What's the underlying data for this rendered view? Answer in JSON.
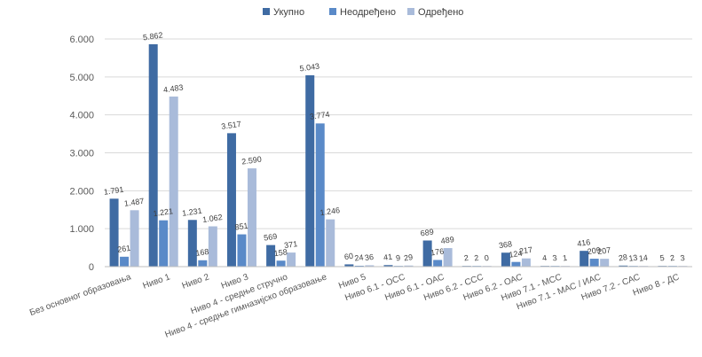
{
  "chart_data": {
    "type": "bar",
    "title": "",
    "xlabel": "",
    "ylabel": "",
    "ylim": [
      0,
      6000
    ],
    "yticks": [
      0,
      1000,
      2000,
      3000,
      4000,
      5000,
      6000
    ],
    "ytick_labels": [
      "0",
      "1.000",
      "2.000",
      "3.000",
      "4.000",
      "5.000",
      "6.000"
    ],
    "grid": true,
    "legend_position": "top-center",
    "categories": [
      "Без основног образовања",
      "Ниво 1",
      "Ниво 2",
      "Ниво 3",
      "Ниво 4 - средње стручно",
      "Ниво 4 - средње гимназијско образовање",
      "Ниво 5",
      "Ниво 6.1 - ОСС",
      "Ниво 6.1 - ОАС",
      "Ниво 6.2 - ССС",
      "Ниво 6.2 - ОАС",
      "Ниво 7.1 - МСС",
      "Ниво 7.1 - МАС / ИАС",
      "Ниво 7.2 - САС",
      "Ниво 8 - ДС"
    ],
    "series": [
      {
        "name": "Укупно",
        "color": "#3f6ba3",
        "values": [
          1791,
          5862,
          1231,
          3517,
          569,
          5043,
          60,
          41,
          689,
          2,
          368,
          4,
          416,
          28,
          5
        ],
        "labels": [
          "1.791",
          "5.862",
          "1.231",
          "3.517",
          "569",
          "5.043",
          "60",
          "41",
          "689",
          "2",
          "368",
          "4",
          "416",
          "28",
          "5"
        ]
      },
      {
        "name": "Неодређено",
        "color": "#5a8ac8",
        "values": [
          261,
          1221,
          168,
          851,
          158,
          3774,
          24,
          9,
          176,
          2,
          124,
          3,
          209,
          13,
          2
        ],
        "labels": [
          "261",
          "1.221",
          "168",
          "851",
          "158",
          "3.774",
          "24",
          "9",
          "176",
          "2",
          "124",
          "3",
          "209",
          "13",
          "2"
        ]
      },
      {
        "name": "Одређено",
        "color": "#a9bbda",
        "values": [
          1487,
          4483,
          1062,
          2590,
          371,
          1246,
          36,
          29,
          489,
          0,
          217,
          1,
          207,
          14,
          3
        ],
        "labels": [
          "1.487",
          "4.483",
          "1.062",
          "2.590",
          "371",
          "1.246",
          "36",
          "29",
          "489",
          "0",
          "217",
          "1",
          "207",
          "14",
          "3"
        ]
      }
    ]
  }
}
